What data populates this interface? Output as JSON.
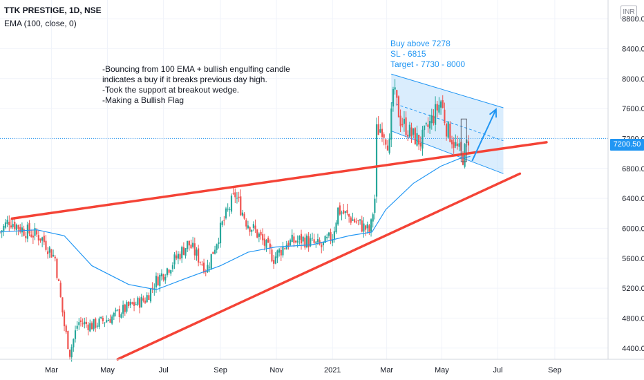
{
  "header": {
    "symbol_line": "TTK PRESTIGE, 1D, NSE",
    "indicator_line": "EMA (100, close, 0)",
    "currency": "INR"
  },
  "annotations": {
    "note_lines": [
      "-Bouncing from 100 EMA + bullish engulfing candle",
      "indicates a buy if it breaks previous day high.",
      "-Took the support at breakout wedge.",
      "-Making a Bullish Flag"
    ],
    "trade_lines": [
      "Buy above 7278",
      "SL - 6815",
      "Target - 7730 - 8000"
    ]
  },
  "last_price_label": "7200.50",
  "colors": {
    "up": "#26a69a",
    "down": "#ef5350",
    "ema": "#2196f3",
    "trendline": "#f44336",
    "flag_fill": "#bbdefb",
    "flag_line": "#2196f3",
    "grid": "#f0f3fa"
  },
  "chart_data": {
    "type": "candlestick",
    "y_axis": {
      "ticks": [
        "8800.00",
        "8400.00",
        "8000.00",
        "7600.00",
        "7200.00",
        "6800.00",
        "6400.00",
        "6000.00",
        "5600.00",
        "5200.00",
        "4800.00",
        "4400.00"
      ],
      "range": [
        4250,
        9050
      ]
    },
    "x_axis": {
      "ticks": [
        "Mar",
        "May",
        "Jul",
        "Sep",
        "Nov",
        "2021",
        "Mar",
        "May",
        "Jul",
        "Sep"
      ],
      "tick_days": [
        56,
        117,
        178,
        240,
        301,
        362,
        421,
        481,
        542,
        604
      ],
      "range_days": [
        0,
        662
      ]
    },
    "key_points": [
      {
        "day": 0,
        "close": 5950
      },
      {
        "day": 10,
        "close": 6110
      },
      {
        "day": 25,
        "close": 5980
      },
      {
        "day": 45,
        "close": 5880
      },
      {
        "day": 60,
        "close": 5600
      },
      {
        "day": 70,
        "close": 4700
      },
      {
        "day": 76,
        "close": 4330
      },
      {
        "day": 85,
        "close": 4750
      },
      {
        "day": 100,
        "close": 4700
      },
      {
        "day": 120,
        "close": 4800
      },
      {
        "day": 140,
        "close": 4950
      },
      {
        "day": 158,
        "close": 5050
      },
      {
        "day": 170,
        "close": 5300
      },
      {
        "day": 185,
        "close": 5500
      },
      {
        "day": 205,
        "close": 5800
      },
      {
        "day": 225,
        "close": 5450
      },
      {
        "day": 242,
        "close": 6050
      },
      {
        "day": 256,
        "close": 6450
      },
      {
        "day": 268,
        "close": 6100
      },
      {
        "day": 282,
        "close": 5900
      },
      {
        "day": 298,
        "close": 5600
      },
      {
        "day": 312,
        "close": 5800
      },
      {
        "day": 330,
        "close": 5850
      },
      {
        "day": 350,
        "close": 5750
      },
      {
        "day": 362,
        "close": 5900
      },
      {
        "day": 368,
        "close": 6250
      },
      {
        "day": 380,
        "close": 6150
      },
      {
        "day": 392,
        "close": 6050
      },
      {
        "day": 403,
        "close": 5950
      },
      {
        "day": 408,
        "close": 6400
      },
      {
        "day": 410,
        "close": 7300
      },
      {
        "day": 416,
        "close": 7350
      },
      {
        "day": 424,
        "close": 7100
      },
      {
        "day": 428,
        "close": 7850
      },
      {
        "day": 436,
        "close": 7450
      },
      {
        "day": 448,
        "close": 7250
      },
      {
        "day": 458,
        "close": 7150
      },
      {
        "day": 470,
        "close": 7450
      },
      {
        "day": 480,
        "close": 7700
      },
      {
        "day": 486,
        "close": 7350
      },
      {
        "day": 496,
        "close": 7100
      },
      {
        "day": 504,
        "close": 6950
      },
      {
        "day": 510,
        "close": 7200
      }
    ],
    "ema100": [
      {
        "day": 0,
        "close": 5950
      },
      {
        "day": 40,
        "close": 5980
      },
      {
        "day": 70,
        "close": 5900
      },
      {
        "day": 100,
        "close": 5500
      },
      {
        "day": 140,
        "close": 5250
      },
      {
        "day": 170,
        "close": 5180
      },
      {
        "day": 200,
        "close": 5320
      },
      {
        "day": 240,
        "close": 5500
      },
      {
        "day": 270,
        "close": 5680
      },
      {
        "day": 300,
        "close": 5750
      },
      {
        "day": 340,
        "close": 5780
      },
      {
        "day": 380,
        "close": 5900
      },
      {
        "day": 405,
        "close": 5950
      },
      {
        "day": 420,
        "close": 6250
      },
      {
        "day": 450,
        "close": 6600
      },
      {
        "day": 480,
        "close": 6830
      },
      {
        "day": 500,
        "close": 6930
      },
      {
        "day": 512,
        "close": 6960
      }
    ],
    "drawings": {
      "upper_trendline": [
        {
          "day": 13,
          "price": 6130
        },
        {
          "day": 595,
          "price": 7150
        }
      ],
      "lower_trendline": [
        {
          "day": 128,
          "price": 4250
        },
        {
          "day": 566,
          "price": 6730
        }
      ],
      "flag_upper": [
        {
          "day": 426,
          "price": 8060
        },
        {
          "day": 548,
          "price": 7610
        }
      ],
      "flag_lower": [
        {
          "day": 426,
          "price": 7300
        },
        {
          "day": 548,
          "price": 6730
        }
      ],
      "flag_midline": [
        {
          "day": 426,
          "price": 7680
        },
        {
          "day": 548,
          "price": 7170
        }
      ],
      "target_arrow": [
        {
          "day": 514,
          "price": 6900
        },
        {
          "day": 540,
          "price": 7590
        }
      ],
      "highlight_box": {
        "day_from": 502,
        "day_to": 508,
        "price_from": 6890,
        "price_to": 7460
      }
    }
  }
}
